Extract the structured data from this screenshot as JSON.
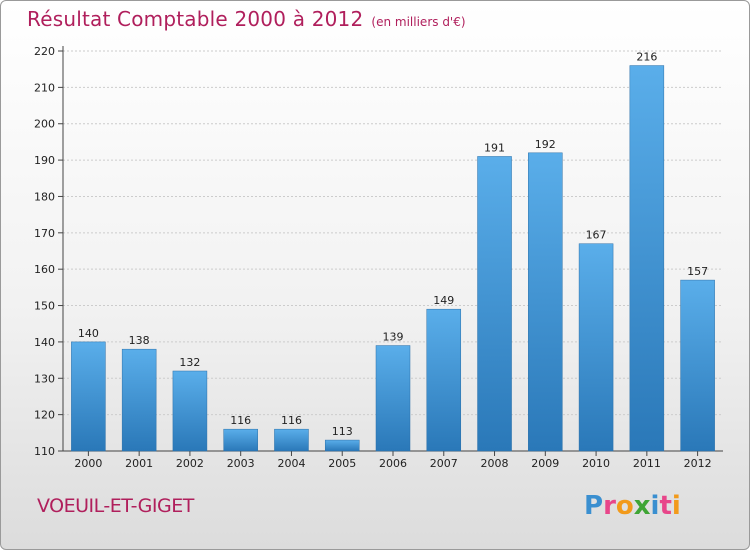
{
  "header": {
    "title": "Résultat Comptable 2000 à 2012",
    "subtitle": "(en milliers d'€)"
  },
  "footer": {
    "commune": "VOEUIL-ET-GIGET",
    "logo_text": "Proxiti",
    "logo_colors": [
      "#3a8fd0",
      "#e8468a",
      "#f29a1b",
      "#3fa535",
      "#3a8fd0",
      "#e8468a",
      "#f29a1b"
    ]
  },
  "colors": {
    "title": "#b01f5c",
    "bar_top": "#5aaeea",
    "bar_bottom": "#2a78b8",
    "grid": "#cccccc",
    "axis": "#444444",
    "text": "#222222"
  },
  "chart_data": {
    "type": "bar",
    "title": "Résultat Comptable 2000 à 2012",
    "subtitle": "(en milliers d'€)",
    "categories": [
      "2000",
      "2001",
      "2002",
      "2003",
      "2004",
      "2005",
      "2006",
      "2007",
      "2008",
      "2009",
      "2010",
      "2011",
      "2012"
    ],
    "values": [
      140,
      138,
      132,
      116,
      116,
      113,
      139,
      149,
      191,
      192,
      167,
      216,
      157
    ],
    "ylim": [
      110,
      220
    ],
    "yticks": [
      110,
      120,
      130,
      140,
      150,
      160,
      170,
      180,
      190,
      200,
      210,
      220
    ],
    "grid": true,
    "data_labels": true
  }
}
